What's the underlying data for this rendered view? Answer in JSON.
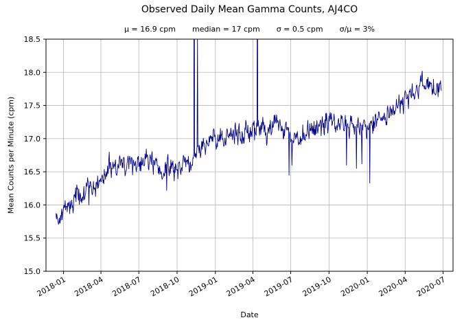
{
  "page": {
    "background": "#ffffff"
  },
  "chart_data": {
    "type": "line",
    "title": "Observed Daily Mean Gamma Counts, AJ4CO",
    "subtitle_stats": [
      "μ = 16.9 cpm",
      "median = 17 cpm",
      "σ = 0.5 cpm",
      "σ/μ = 3%"
    ],
    "xlabel": "Date",
    "ylabel": "Mean Counts per Minute (cpm)",
    "ylim": [
      15.0,
      18.5
    ],
    "yticks": [
      15.0,
      15.5,
      16.0,
      16.5,
      17.0,
      17.5,
      18.0,
      18.5
    ],
    "xtick_labels": [
      "2018-01",
      "2018-04",
      "2018-07",
      "2018-10",
      "2019-01",
      "2019-04",
      "2019-07",
      "2019-10",
      "2020-01",
      "2020-04",
      "2020-07"
    ],
    "x_range": [
      "2017-11-20",
      "2020-07-25"
    ],
    "grid": true,
    "legend": "none",
    "line_color": "#00008b",
    "grid_color": "#b4b4b4",
    "series": [
      {
        "name": "daily mean gamma counts (cpm)",
        "start": "2017-12-14",
        "end": "2020-06-27",
        "anchor_dates": [
          "2017-12-14",
          "2018-01-01",
          "2018-01-20",
          "2018-02-10",
          "2018-03-01",
          "2018-03-20",
          "2018-04-10",
          "2018-05-01",
          "2018-05-25",
          "2018-06-15",
          "2018-07-05",
          "2018-07-25",
          "2018-08-15",
          "2018-08-28",
          "2018-09-15",
          "2018-10-05",
          "2018-10-25",
          "2018-11-10",
          "2018-12-01",
          "2018-12-20",
          "2019-01-15",
          "2019-02-10",
          "2019-03-10",
          "2019-04-01",
          "2019-05-01",
          "2019-06-01",
          "2019-06-25",
          "2019-07-15",
          "2019-08-05",
          "2019-09-01",
          "2019-10-01",
          "2019-11-01",
          "2019-12-01",
          "2020-01-01",
          "2020-02-01",
          "2020-03-01",
          "2020-04-01",
          "2020-04-20",
          "2020-05-10",
          "2020-06-01",
          "2020-06-27"
        ],
        "anchor_values": [
          15.8,
          15.9,
          16.05,
          16.15,
          16.2,
          16.3,
          16.45,
          16.55,
          16.6,
          16.65,
          16.6,
          16.7,
          16.55,
          16.45,
          16.55,
          16.6,
          16.65,
          16.7,
          16.9,
          17.0,
          17.0,
          17.05,
          17.1,
          17.15,
          17.15,
          17.2,
          17.1,
          17.0,
          17.05,
          17.2,
          17.25,
          17.2,
          17.15,
          17.2,
          17.3,
          17.4,
          17.6,
          17.7,
          17.8,
          17.75,
          17.7
        ]
      }
    ],
    "noise_model": {
      "sd": 0.075,
      "ar": 0.45
    },
    "events": [
      {
        "date": "2018-03-03",
        "value": 16.0
      },
      {
        "date": "2018-09-06",
        "value": 16.22
      },
      {
        "date": "2018-11-11",
        "value": 21.0
      },
      {
        "date": "2018-11-19",
        "value": 18.55
      },
      {
        "date": "2019-04-12",
        "value": 20.0
      },
      {
        "date": "2019-06-27",
        "value": 16.45
      },
      {
        "date": "2019-07-04",
        "value": 16.6
      },
      {
        "date": "2019-11-12",
        "value": 16.6
      },
      {
        "date": "2019-12-06",
        "value": 16.55
      },
      {
        "date": "2019-12-19",
        "value": 16.62
      },
      {
        "date": "2020-01-07",
        "value": 16.33
      },
      {
        "date": "2020-05-12",
        "value": 18.02
      }
    ]
  }
}
